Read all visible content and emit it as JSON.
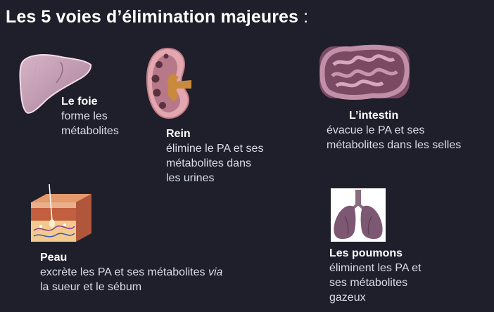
{
  "title": {
    "text": "Les 5 voies d’élimination majeures",
    "colon": ":"
  },
  "organs": {
    "liver": {
      "name": "Le foie",
      "desc_1": "forme les",
      "desc_2": "métabolites",
      "icon": "liver-icon"
    },
    "kidney": {
      "name": "Rein",
      "desc_1": "élimine le PA et ses",
      "desc_2": "métabolites dans",
      "desc_3": "les urines",
      "icon": "kidney-icon"
    },
    "intestine": {
      "name": "L’intestin",
      "desc_1": "évacue le PA et ses",
      "desc_2": "métabolites dans les selles",
      "icon": "intestine-icon"
    },
    "skin": {
      "name": "Peau",
      "desc_1a": "excrète les PA et ses métabolites ",
      "desc_1b": "via",
      "desc_2": "la sueur et le sébum",
      "icon": "skin-icon"
    },
    "lungs": {
      "name": "Les poumons",
      "desc_1": "éliminent les PA et",
      "desc_2": "ses métabolites",
      "desc_3": "gazeux",
      "icon": "lungs-icon"
    }
  },
  "colors": {
    "background": "#1f1f2b",
    "text": "#d8dde8",
    "heading": "#ffffff"
  }
}
